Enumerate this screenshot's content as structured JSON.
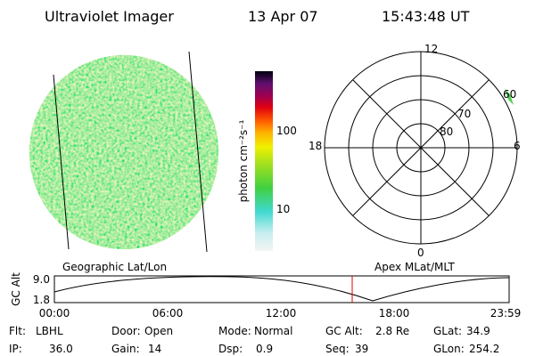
{
  "header": {
    "title": "Ultraviolet Imager",
    "date": "13 Apr 07",
    "time": "15:43:48 UT"
  },
  "colorbar": {
    "label": "photon cm⁻²s⁻¹",
    "ticks": [
      "100",
      "10"
    ]
  },
  "polar": {
    "labels": {
      "top": "12",
      "bottom": "0",
      "left": "18",
      "right": "6"
    },
    "rings": [
      "60",
      "70",
      "80"
    ]
  },
  "altitude_plot": {
    "left_title": "Geographic Lat/Lon",
    "right_title": "Apex MLat/MLT",
    "y_label": "GC Alt",
    "yticks": [
      "9.0",
      "1.8"
    ],
    "xticks": [
      "00:00",
      "06:00",
      "12:00",
      "18:00",
      "23:59"
    ]
  },
  "status": {
    "rows": [
      [
        {
          "label": "Flt:",
          "value": "LBHL"
        },
        {
          "label": "Door:",
          "value": "Open"
        },
        {
          "label": "Mode:",
          "value": "Normal"
        },
        {
          "label": "GC Alt:",
          "value": "2.8 Re"
        },
        {
          "label": "GLat:",
          "value": "34.9"
        }
      ],
      [
        {
          "label": "IP:",
          "value": "36.0"
        },
        {
          "label": "Gain:",
          "value": "14"
        },
        {
          "label": "Dsp:",
          "value": "0.9"
        },
        {
          "label": "Seq:",
          "value": "39"
        },
        {
          "label": "GLon:",
          "value": "254.2"
        }
      ]
    ]
  }
}
